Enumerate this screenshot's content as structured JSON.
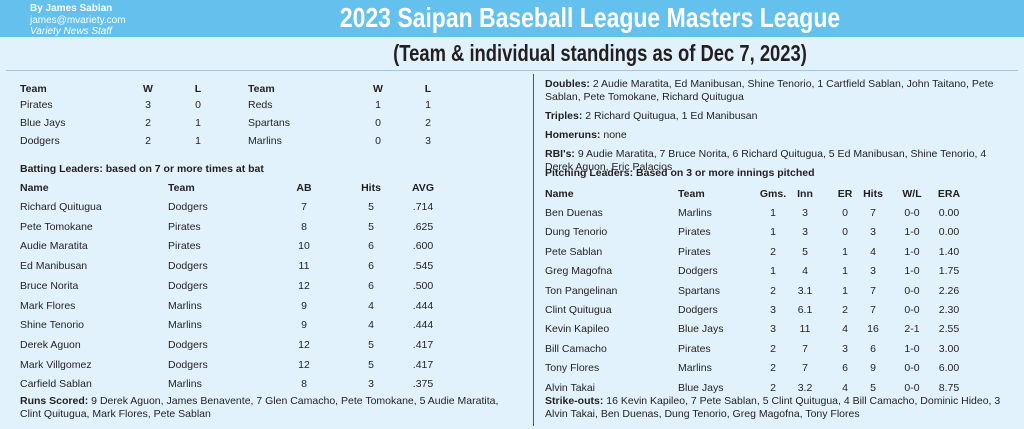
{
  "header": {
    "byline": "By James Sablan",
    "email": "james@mvariety.com",
    "staff": "Variety News Staff",
    "title": "2023 Saipan Baseball League Masters League",
    "subtitle": "(Team & individual standings as of Dec 7, 2023)"
  },
  "standings": {
    "headers": [
      "Team",
      "W",
      "L",
      "Team",
      "W",
      "L"
    ],
    "rows": [
      [
        "Pirates",
        "3",
        "0",
        "Reds",
        "1",
        "1"
      ],
      [
        "Blue Jays",
        "2",
        "1",
        "Spartans",
        "0",
        "2"
      ],
      [
        "Dodgers",
        "2",
        "1",
        "Marlins",
        "0",
        "3"
      ]
    ]
  },
  "batting": {
    "title": "Batting Leaders: based on 7 or more times at bat",
    "headers": [
      "Name",
      "Team",
      "AB",
      "Hits",
      "AVG"
    ],
    "rows": [
      [
        "Richard Quitugua",
        "Dodgers",
        "7",
        "5",
        ".714"
      ],
      [
        "Pete Tomokane",
        "Pirates",
        "8",
        "5",
        ".625"
      ],
      [
        "Audie Maratita",
        "Pirates",
        "10",
        "6",
        ".600"
      ],
      [
        "Ed Manibusan",
        "Dodgers",
        "11",
        "6",
        ".545"
      ],
      [
        "Bruce Norita",
        "Dodgers",
        "12",
        "6",
        ".500"
      ],
      [
        "Mark Flores",
        "Marlins",
        "9",
        "4",
        ".444"
      ],
      [
        "Shine Tenorio",
        "Marlins",
        "9",
        "4",
        ".444"
      ],
      [
        "Derek Aguon",
        "Dodgers",
        "12",
        "5",
        ".417"
      ],
      [
        "Mark Villgomez",
        "Dodgers",
        "12",
        "5",
        ".417"
      ],
      [
        "Carfield Sablan",
        "Marlins",
        "8",
        "3",
        ".375"
      ]
    ]
  },
  "runs_scored": {
    "label": "Runs Scored:",
    "text": "9 Derek Aguon, James Benavente, 7 Glen Camacho, Pete Tomokane, 5 Audie Maratita, Clint Quitugua, Mark Flores, Pete Sablan"
  },
  "doubles": {
    "label": "Doubles:",
    "text": "2 Audie Maratita, Ed Manibusan, Shine Tenorio, 1 Cartfield Sablan, John Taitano, Pete Sablan, Pete Tomokane, Richard Quitugua"
  },
  "triples": {
    "label": "Triples:",
    "text": "2 Richard Quitugua, 1 Ed Manibusan"
  },
  "homeruns": {
    "label": "Homeruns:",
    "text": "none"
  },
  "rbis": {
    "label": "RBI's:",
    "text": "9 Audie Maratita, 7 Bruce Norita, 6 Richard Quitugua, 5 Ed Manibusan, Shine Tenorio, 4 Derek Aguon, Eric Palacios"
  },
  "pitching": {
    "title": "Pitching Leaders: Based on 3 or more innings pitched",
    "headers": [
      "Name",
      "Team",
      "Gms.",
      "Inn",
      "ER",
      "Hits",
      "W/L",
      "ERA"
    ],
    "rows": [
      [
        "Ben Duenas",
        "Marlins",
        "1",
        "3",
        "0",
        "7",
        "0-0",
        "0.00"
      ],
      [
        "Dung Tenorio",
        "Pirates",
        "1",
        "3",
        "0",
        "3",
        "1-0",
        "0.00"
      ],
      [
        "Pete Sablan",
        "Pirates",
        "2",
        "5",
        "1",
        "4",
        "1-0",
        "1.40"
      ],
      [
        "Greg Magofna",
        "Dodgers",
        "1",
        "4",
        "1",
        "3",
        "1-0",
        "1.75"
      ],
      [
        "Ton Pangelinan",
        "Spartans",
        "2",
        "3.1",
        "1",
        "7",
        "0-0",
        "2.26"
      ],
      [
        "Clint Quitugua",
        "Dodgers",
        "3",
        "6.1",
        "2",
        "7",
        "0-0",
        "2.30"
      ],
      [
        "Kevin Kapileo",
        "Blue Jays",
        "3",
        "11",
        "4",
        "16",
        "2-1",
        "2.55"
      ],
      [
        "Bill Camacho",
        "Pirates",
        "2",
        "7",
        "3",
        "6",
        "1-0",
        "3.00"
      ],
      [
        "Tony Flores",
        "Marlins",
        "2",
        "7",
        "6",
        "9",
        "0-0",
        "6.00"
      ],
      [
        "Alvin Takai",
        "Blue Jays",
        "2",
        "3.2",
        "4",
        "5",
        "0-0",
        "8.75"
      ]
    ]
  },
  "strikeouts": {
    "label": "Strike-outs:",
    "text": "16 Kevin Kapileo, 7 Pete Sablan, 5 Clint Quitugua, 4 Bill Camacho, Dominic Hideo, 3 Alvin Takai, Ben Duenas, Dung Tenorio, Greg Magofna, Tony Flores"
  }
}
